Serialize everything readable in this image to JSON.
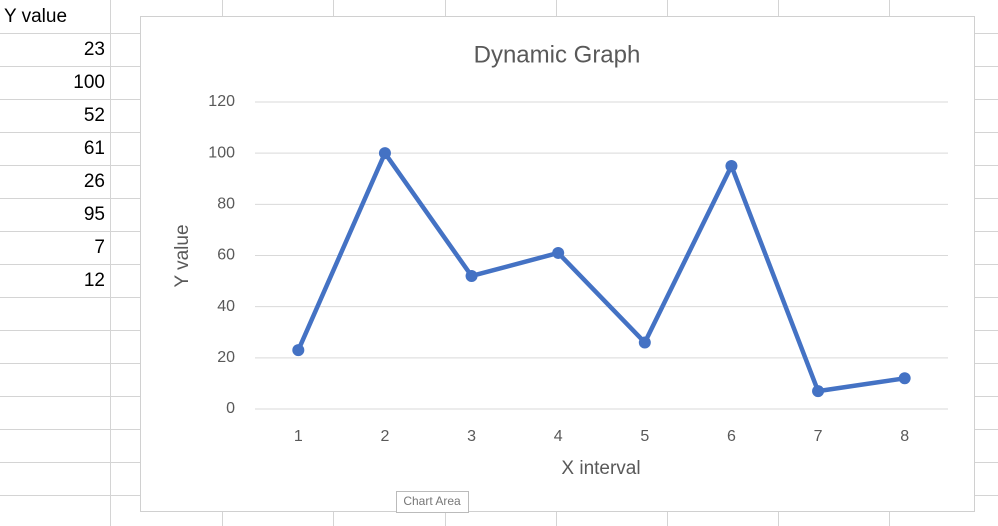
{
  "chart_data": {
    "type": "line",
    "title": "Dynamic Graph",
    "xlabel": "X interval",
    "ylabel": "Y value",
    "x": [
      1,
      2,
      3,
      4,
      5,
      6,
      7,
      8
    ],
    "series": [
      {
        "color": "#4472c4",
        "values": [
          23,
          100,
          52,
          61,
          26,
          95,
          7,
          12
        ]
      }
    ],
    "xlim": [
      0.5,
      8.5
    ],
    "xticks": [
      1,
      2,
      3,
      4,
      5,
      6,
      7,
      8
    ],
    "ylim": [
      0,
      120
    ],
    "yticks": [
      0,
      20,
      40,
      60,
      80,
      100,
      120
    ],
    "grid": true
  },
  "tooltip": "Chart Area"
}
